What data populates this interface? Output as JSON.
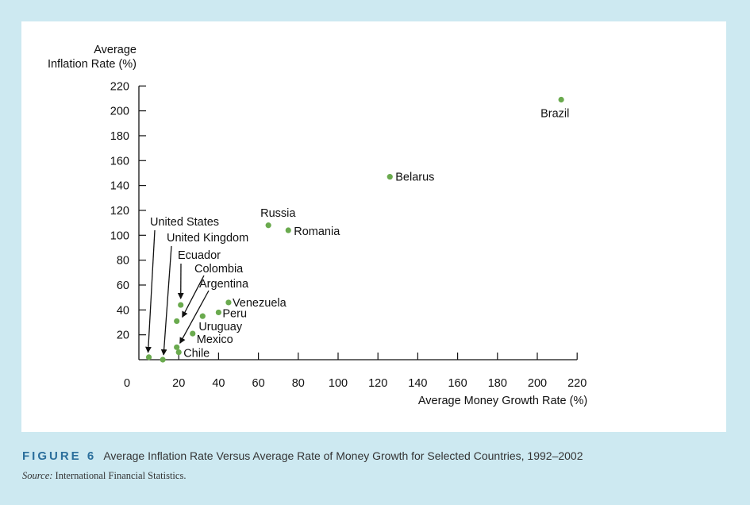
{
  "figure": {
    "label": "FIGURE 6",
    "caption": "Average Inflation Rate Versus Average Rate of Money Growth for Selected Countries, 1992–2002",
    "source_key": "Source:",
    "source_text": "International Financial Statistics."
  },
  "colors": {
    "background": "#cde9f1",
    "panel": "#ffffff",
    "marker": "#6aaa4e",
    "caption_accent": "#2b6f9c"
  },
  "chart_data": {
    "type": "scatter",
    "title": "",
    "xlabel": "Average Money Growth Rate (%)",
    "ylabel_line1": "Average",
    "ylabel_line2": "Inflation Rate (%)",
    "xlim": [
      0,
      220
    ],
    "ylim": [
      0,
      220
    ],
    "x_ticks": [
      0,
      20,
      40,
      60,
      80,
      100,
      120,
      140,
      160,
      180,
      200,
      220
    ],
    "y_ticks": [
      20,
      40,
      60,
      80,
      100,
      120,
      140,
      160,
      180,
      200,
      220
    ],
    "grid": false,
    "legend": "none",
    "points": [
      {
        "name": "Brazil",
        "x": 212,
        "y": 209
      },
      {
        "name": "Belarus",
        "x": 126,
        "y": 147
      },
      {
        "name": "Russia",
        "x": 65,
        "y": 108
      },
      {
        "name": "Romania",
        "x": 75,
        "y": 104
      },
      {
        "name": "Venezuela",
        "x": 45,
        "y": 46
      },
      {
        "name": "Peru",
        "x": 40,
        "y": 38
      },
      {
        "name": "Uruguay",
        "x": 32,
        "y": 35
      },
      {
        "name": "Mexico",
        "x": 27,
        "y": 21
      },
      {
        "name": "Chile",
        "x": 20,
        "y": 6
      },
      {
        "name": "Ecuador",
        "x": 21,
        "y": 44
      },
      {
        "name": "Colombia",
        "x": 19,
        "y": 31
      },
      {
        "name": "Argentina",
        "x": 19,
        "y": 10
      },
      {
        "name": "United States",
        "x": 5,
        "y": 2
      },
      {
        "name": "United Kingdom",
        "x": 12,
        "y": 0
      }
    ]
  }
}
